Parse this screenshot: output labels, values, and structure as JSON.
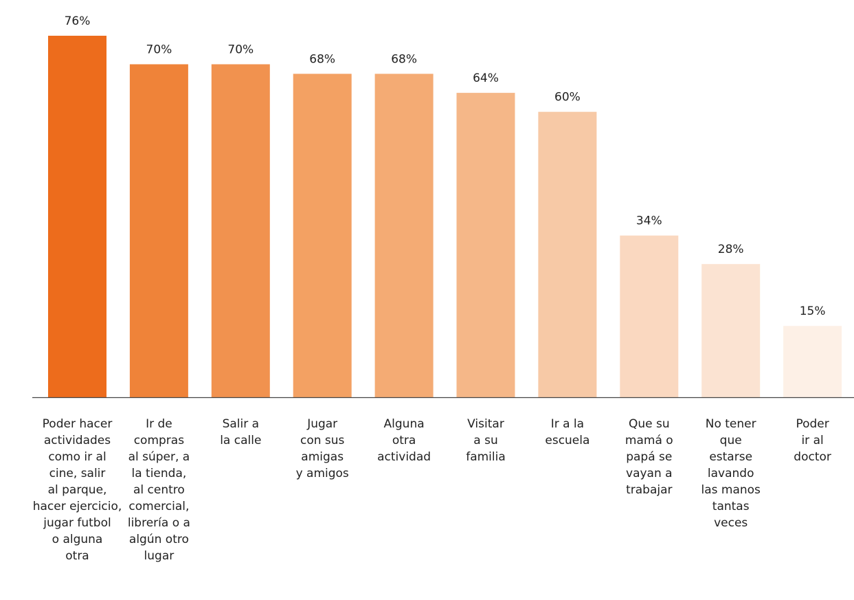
{
  "chart_data": {
    "type": "bar",
    "categories": [
      "Poder hacer actividades como ir al cine, salir al parque, hacer ejercicio, jugar futbol o alguna otra",
      "Ir de compras al súper, a la tienda, al centro comercial, librería o a algún otro lugar",
      "Salir a la calle",
      "Jugar con sus amigas y amigos",
      "Alguna otra actividad",
      "Visitar a su familia",
      "Ir a la escuela",
      "Que su mamá o papá se vayan a trabajar",
      "No tener que estarse lavando las manos tantas veces",
      "Poder ir al doctor"
    ],
    "category_lines": [
      [
        "Poder hacer",
        "actividades",
        "como ir al",
        "cine, salir",
        "al parque,",
        "hacer ejercicio,",
        "jugar futbol",
        "o alguna",
        "otra"
      ],
      [
        "Ir de",
        "compras",
        "al súper, a",
        "la tienda,",
        "al centro",
        "comercial,",
        "librería o a",
        "algún otro",
        "lugar"
      ],
      [
        "Salir a",
        "la calle"
      ],
      [
        "Jugar",
        "con sus",
        "amigas",
        "y amigos"
      ],
      [
        "Alguna",
        "otra",
        "actividad"
      ],
      [
        "Visitar",
        "a su",
        "familia"
      ],
      [
        "Ir a la",
        "escuela"
      ],
      [
        "Que su",
        "mamá o",
        "papá se",
        "vayan a",
        "trabajar"
      ],
      [
        "No tener",
        "que",
        "estarse",
        "lavando",
        "las manos",
        "tantas",
        "veces"
      ],
      [
        "Poder",
        "ir al",
        "doctor"
      ]
    ],
    "values": [
      76,
      70,
      70,
      68,
      68,
      64,
      60,
      34,
      28,
      15
    ],
    "value_labels": [
      "76%",
      "70%",
      "70%",
      "68%",
      "68%",
      "64%",
      "60%",
      "34%",
      "28%",
      "15%"
    ],
    "bar_colors": [
      "#ed6c1c",
      "#ef8339",
      "#f1924f",
      "#f3a163",
      "#f4ab74",
      "#f5b788",
      "#f7c9a6",
      "#fad8c0",
      "#fbe3d2",
      "#fdf0e6"
    ],
    "ylim": [
      0,
      76
    ],
    "grid": false,
    "legend": "none",
    "title": "",
    "xlabel": "",
    "ylabel": ""
  }
}
